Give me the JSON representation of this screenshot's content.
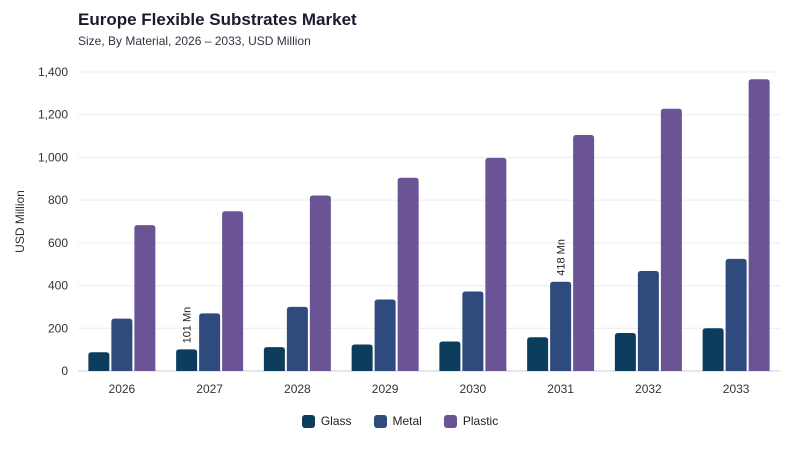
{
  "chart_data": {
    "type": "bar",
    "title": "Europe Flexible Substrates Market",
    "subtitle": "Size, By Material, 2026 – 2033, USD Million",
    "ylabel": "USD Million",
    "xlabel": "",
    "ylim": [
      0,
      1400
    ],
    "yticks": [
      "0",
      "200",
      "400",
      "600",
      "800",
      "1,000",
      "1,200",
      "1,400"
    ],
    "grid": true,
    "legend_position": "bottom",
    "categories": [
      "2026",
      "2027",
      "2028",
      "2029",
      "2030",
      "2031",
      "2032",
      "2033"
    ],
    "series": [
      {
        "name": "Glass",
        "color": "#0d3d5c",
        "values": [
          88,
          101,
          112,
          124,
          138,
          158,
          178,
          200
        ]
      },
      {
        "name": "Metal",
        "color": "#2f4a7d",
        "values": [
          245,
          270,
          300,
          335,
          372,
          418,
          468,
          525
        ]
      },
      {
        "name": "Plastic",
        "color": "#6b5496",
        "values": [
          683,
          748,
          822,
          905,
          998,
          1105,
          1228,
          1366
        ]
      }
    ],
    "annotations": [
      {
        "category": "2027",
        "series": "Glass",
        "text": "101 Mn"
      },
      {
        "category": "2031",
        "series": "Metal",
        "text": "418 Mn"
      }
    ]
  }
}
